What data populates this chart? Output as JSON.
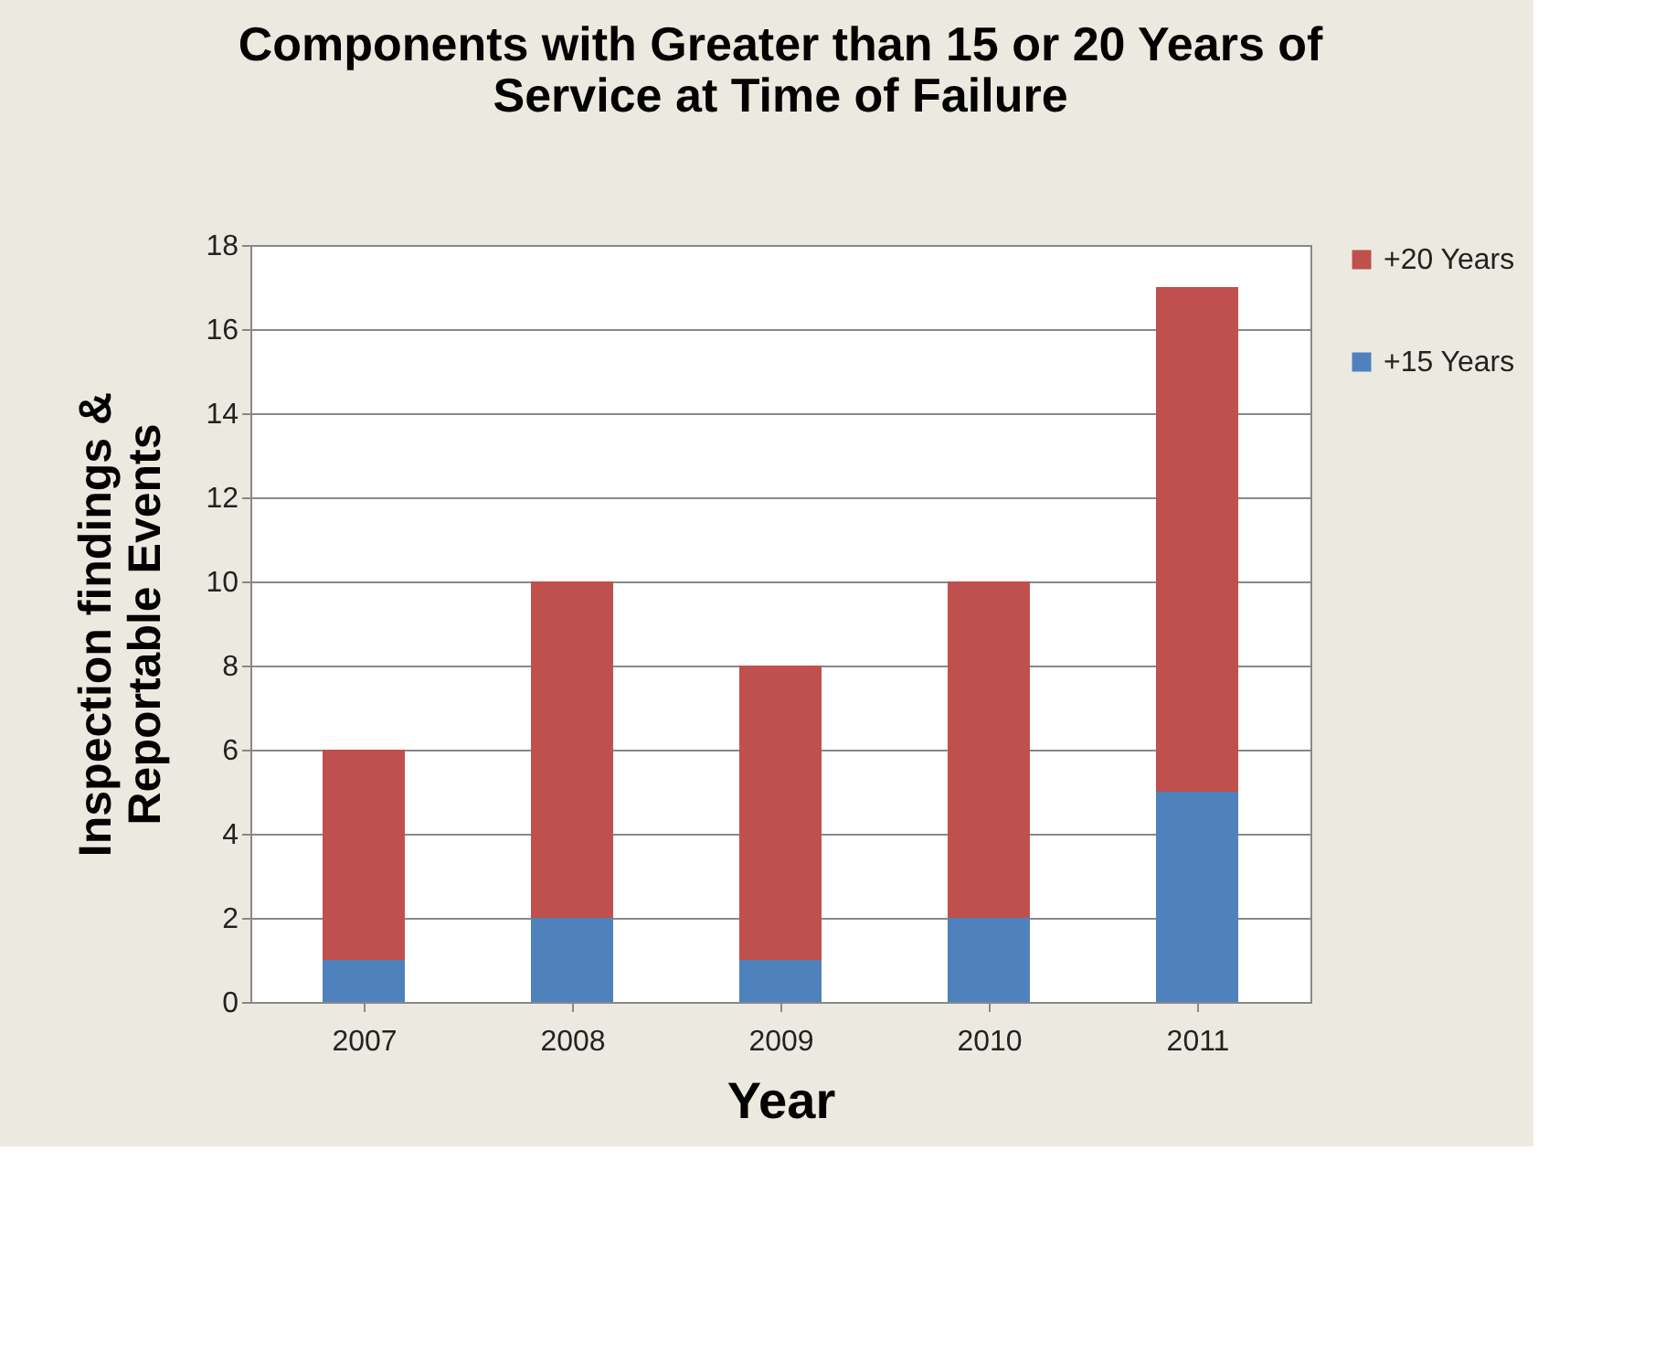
{
  "chart_data": {
    "type": "bar",
    "title": "Components with Greater than 15 or 20 Years of\nService at Time of Failure",
    "xlabel": "Year",
    "ylabel": "Inspection findings &\nReportable Events",
    "categories": [
      "2007",
      "2008",
      "2009",
      "2010",
      "2011"
    ],
    "stacked": true,
    "series": [
      {
        "name": "+15 Years",
        "color": "#4f81bd",
        "values": [
          1,
          2,
          1,
          2,
          5
        ]
      },
      {
        "name": "+20 Years",
        "color": "#c0504d",
        "values": [
          5,
          8,
          7,
          8,
          12
        ]
      }
    ],
    "ylim": [
      0,
      18
    ],
    "yticks": [
      0,
      2,
      4,
      6,
      8,
      10,
      12,
      14,
      16,
      18
    ],
    "grid": "y",
    "legend": "right"
  }
}
